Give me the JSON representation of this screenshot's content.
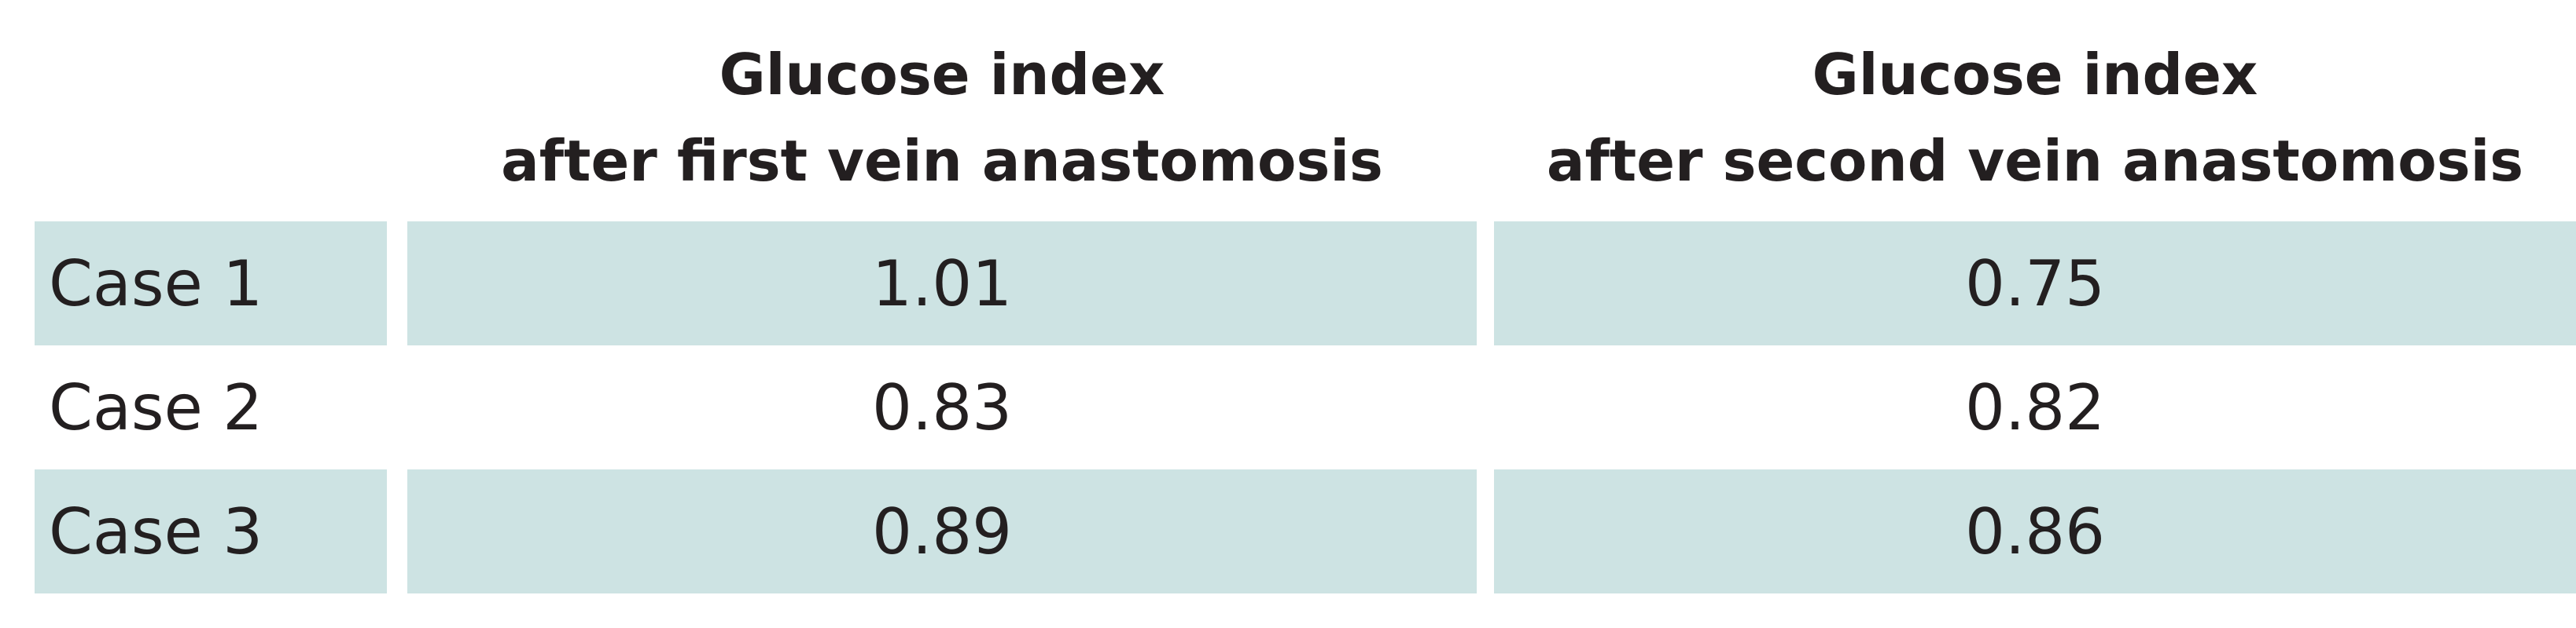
{
  "table": {
    "headers": [
      {
        "line1": "Glucose index",
        "line2": "after first vein anastomosis"
      },
      {
        "line1": "Glucose index",
        "line2": "after second vein anastomosis"
      }
    ],
    "rows": [
      {
        "label": "Case 1",
        "first": "1.01",
        "second": "0.75",
        "shaded": true
      },
      {
        "label": "Case 2",
        "first": "0.83",
        "second": "0.82",
        "shaded": false
      },
      {
        "label": "Case 3",
        "first": "0.89",
        "second": "0.86",
        "shaded": true
      }
    ],
    "colors": {
      "row_shade": "#cde3e3",
      "text": "#231f20",
      "background": "#ffffff"
    }
  }
}
